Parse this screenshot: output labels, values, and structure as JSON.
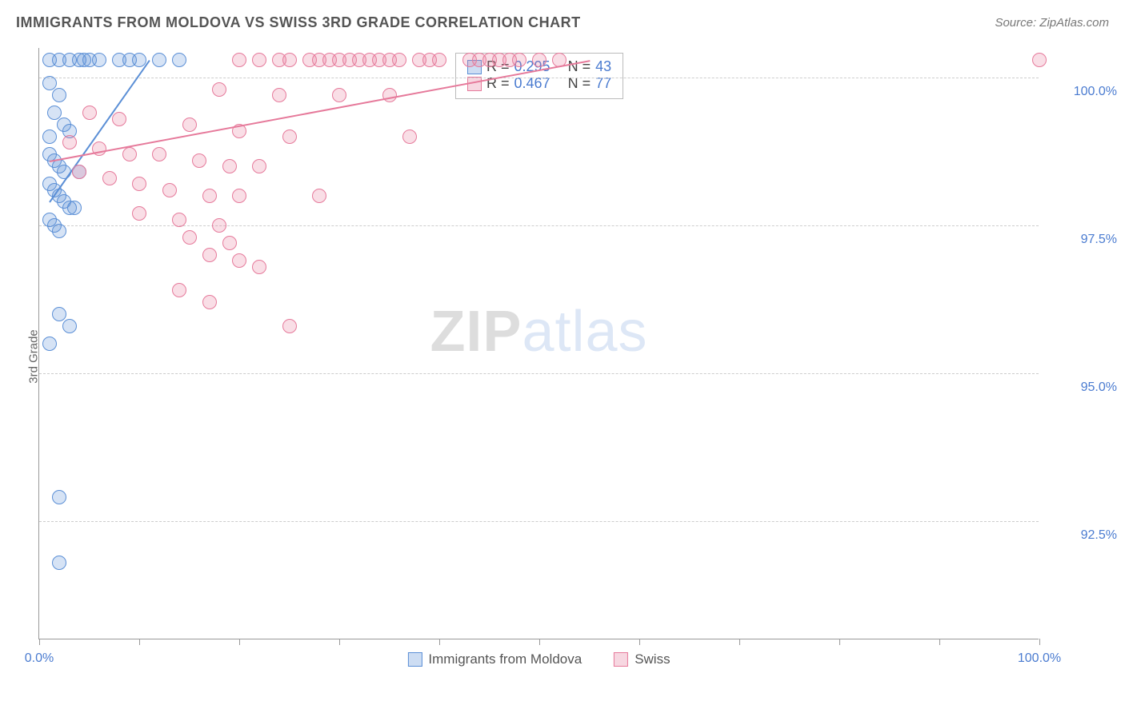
{
  "title": "IMMIGRANTS FROM MOLDOVA VS SWISS 3RD GRADE CORRELATION CHART",
  "source": "Source: ZipAtlas.com",
  "y_axis_label": "3rd Grade",
  "watermark": {
    "left": "ZIP",
    "right": "atlas"
  },
  "chart": {
    "type": "scatter",
    "xlim": [
      0,
      100
    ],
    "ylim": [
      90.5,
      100.5
    ],
    "x_ticks": [
      0,
      10,
      20,
      30,
      40,
      50,
      60,
      70,
      80,
      90,
      100
    ],
    "x_tick_labels": {
      "0": "0.0%",
      "100": "100.0%"
    },
    "y_gridlines": [
      92.5,
      95.0,
      97.5,
      100.0
    ],
    "y_tick_labels": {
      "92.5": "92.5%",
      "95.0": "95.0%",
      "97.5": "97.5%",
      "100.0": "100.0%"
    },
    "background_color": "#ffffff",
    "grid_color": "#cccccc",
    "axis_color": "#999999",
    "marker_radius": 9,
    "marker_fill_opacity": 0.25,
    "marker_stroke_width": 1.5,
    "series": [
      {
        "name": "Immigrants from Moldova",
        "color": "#5b8fd6",
        "R": 0.295,
        "N": 43,
        "trend": {
          "x1": 1,
          "y1": 97.9,
          "x2": 11,
          "y2": 100.3
        },
        "points": [
          [
            1,
            100.3
          ],
          [
            2,
            100.3
          ],
          [
            3,
            100.3
          ],
          [
            4,
            100.3
          ],
          [
            4.5,
            100.3
          ],
          [
            5,
            100.3
          ],
          [
            6,
            100.3
          ],
          [
            8,
            100.3
          ],
          [
            9,
            100.3
          ],
          [
            10,
            100.3
          ],
          [
            12,
            100.3
          ],
          [
            14,
            100.3
          ],
          [
            1,
            99.9
          ],
          [
            2,
            99.7
          ],
          [
            1.5,
            99.4
          ],
          [
            2.5,
            99.2
          ],
          [
            3,
            99.1
          ],
          [
            1,
            99.0
          ],
          [
            1,
            98.7
          ],
          [
            1.5,
            98.6
          ],
          [
            2,
            98.5
          ],
          [
            2.5,
            98.4
          ],
          [
            4,
            98.4
          ],
          [
            1,
            98.2
          ],
          [
            1.5,
            98.1
          ],
          [
            2,
            98.0
          ],
          [
            2.5,
            97.9
          ],
          [
            3,
            97.8
          ],
          [
            3.5,
            97.8
          ],
          [
            1,
            97.6
          ],
          [
            1.5,
            97.5
          ],
          [
            2,
            97.4
          ],
          [
            2,
            96.0
          ],
          [
            3,
            95.8
          ],
          [
            1,
            95.5
          ],
          [
            2,
            92.9
          ],
          [
            2,
            91.8
          ]
        ]
      },
      {
        "name": "Swiss",
        "color": "#e67a9b",
        "R": 0.467,
        "N": 77,
        "trend": {
          "x1": 1,
          "y1": 98.6,
          "x2": 55,
          "y2": 100.3
        },
        "points": [
          [
            20,
            100.3
          ],
          [
            22,
            100.3
          ],
          [
            24,
            100.3
          ],
          [
            25,
            100.3
          ],
          [
            27,
            100.3
          ],
          [
            28,
            100.3
          ],
          [
            29,
            100.3
          ],
          [
            30,
            100.3
          ],
          [
            31,
            100.3
          ],
          [
            32,
            100.3
          ],
          [
            33,
            100.3
          ],
          [
            34,
            100.3
          ],
          [
            35,
            100.3
          ],
          [
            36,
            100.3
          ],
          [
            38,
            100.3
          ],
          [
            39,
            100.3
          ],
          [
            40,
            100.3
          ],
          [
            43,
            100.3
          ],
          [
            44,
            100.3
          ],
          [
            45,
            100.3
          ],
          [
            46,
            100.3
          ],
          [
            47,
            100.3
          ],
          [
            48,
            100.3
          ],
          [
            50,
            100.3
          ],
          [
            52,
            100.3
          ],
          [
            100,
            100.3
          ],
          [
            18,
            99.8
          ],
          [
            24,
            99.7
          ],
          [
            30,
            99.7
          ],
          [
            35,
            99.7
          ],
          [
            5,
            99.4
          ],
          [
            8,
            99.3
          ],
          [
            15,
            99.2
          ],
          [
            20,
            99.1
          ],
          [
            25,
            99.0
          ],
          [
            37,
            99.0
          ],
          [
            3,
            98.9
          ],
          [
            6,
            98.8
          ],
          [
            9,
            98.7
          ],
          [
            12,
            98.7
          ],
          [
            16,
            98.6
          ],
          [
            19,
            98.5
          ],
          [
            22,
            98.5
          ],
          [
            4,
            98.4
          ],
          [
            7,
            98.3
          ],
          [
            10,
            98.2
          ],
          [
            13,
            98.1
          ],
          [
            17,
            98.0
          ],
          [
            20,
            98.0
          ],
          [
            28,
            98.0
          ],
          [
            10,
            97.7
          ],
          [
            14,
            97.6
          ],
          [
            18,
            97.5
          ],
          [
            15,
            97.3
          ],
          [
            19,
            97.2
          ],
          [
            17,
            97.0
          ],
          [
            20,
            96.9
          ],
          [
            22,
            96.8
          ],
          [
            14,
            96.4
          ],
          [
            17,
            96.2
          ],
          [
            25,
            95.8
          ]
        ]
      }
    ],
    "stats_box": {
      "rows": [
        {
          "swatch": "#5b8fd6",
          "R_label": "R =",
          "R": "0.295",
          "N_label": "N =",
          "N": "43"
        },
        {
          "swatch": "#e67a9b",
          "R_label": "R =",
          "R": "0.467",
          "N_label": "N =",
          "N": "77"
        }
      ]
    },
    "bottom_legend": [
      {
        "swatch": "#5b8fd6",
        "label": "Immigrants from Moldova"
      },
      {
        "swatch": "#e67a9b",
        "label": "Swiss"
      }
    ]
  }
}
